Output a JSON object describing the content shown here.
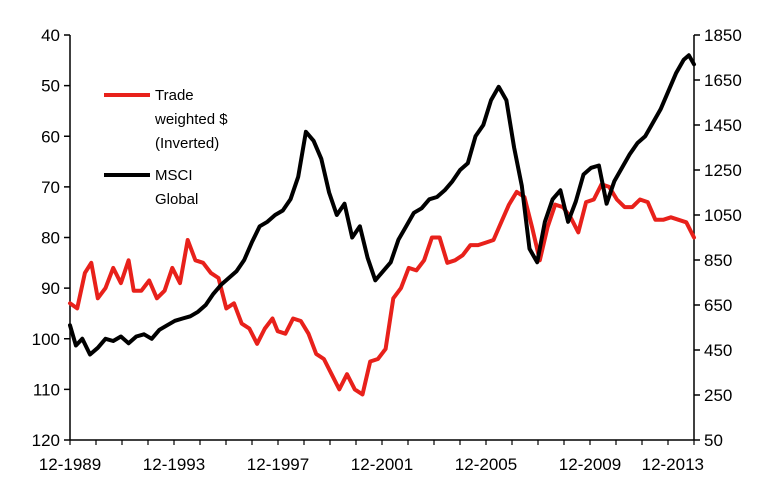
{
  "chart_data": {
    "type": "line",
    "title": "",
    "xlabel": "",
    "ylabel_left": "",
    "ylabel_right": "",
    "x_tick_labels": [
      "12-1989",
      "12-1993",
      "12-1997",
      "12-2001",
      "12-2005",
      "12-2009",
      "12-2013"
    ],
    "x_range": [
      1989.92,
      2014.2
    ],
    "y_left": {
      "range": [
        40,
        120
      ],
      "inverted": true,
      "ticks": [
        40,
        50,
        60,
        70,
        80,
        90,
        100,
        110,
        120
      ]
    },
    "y_right": {
      "range": [
        50,
        1850
      ],
      "ticks": [
        50,
        250,
        450,
        650,
        850,
        1050,
        1250,
        1450,
        1650,
        1850
      ]
    },
    "grid": false,
    "legend_position": "top-left",
    "legend": [
      {
        "lines": [
          "Trade",
          "weighted $",
          "(Inverted)"
        ],
        "color": "#e8211b"
      },
      {
        "lines": [
          "MSCI",
          "Global"
        ],
        "color": "#000000"
      }
    ],
    "series": [
      {
        "name": "Trade weighted $ (Inverted)",
        "axis": "left",
        "color": "#e8211b",
        "x": [
          1989.92,
          1990.2,
          1990.5,
          1990.75,
          1991.0,
          1991.3,
          1991.6,
          1991.9,
          1992.2,
          1992.4,
          1992.7,
          1993.0,
          1993.3,
          1993.6,
          1993.9,
          1994.2,
          1994.5,
          1994.8,
          1995.1,
          1995.4,
          1995.7,
          1996.0,
          1996.3,
          1996.6,
          1996.9,
          1997.2,
          1997.5,
          1997.8,
          1998.0,
          1998.3,
          1998.6,
          1998.9,
          1999.2,
          1999.5,
          1999.8,
          2000.1,
          2000.4,
          2000.7,
          2001.0,
          2001.3,
          2001.6,
          2001.9,
          2002.2,
          2002.5,
          2002.8,
          2003.1,
          2003.4,
          2003.7,
          2004.0,
          2004.3,
          2004.6,
          2004.9,
          2005.2,
          2005.5,
          2005.8,
          2006.1,
          2006.4,
          2006.7,
          2007.0,
          2007.3,
          2007.6,
          2007.9,
          2008.2,
          2008.5,
          2008.8,
          2009.1,
          2009.4,
          2009.7,
          2010.0,
          2010.3,
          2010.6,
          2010.9,
          2011.2,
          2011.5,
          2011.8,
          2012.1,
          2012.4,
          2012.7,
          2013.0,
          2013.3,
          2013.6,
          2013.9,
          2014.2
        ],
        "values": [
          93,
          94,
          87,
          85,
          92,
          90,
          86,
          89,
          84.5,
          90.5,
          90.5,
          88.5,
          92,
          90.5,
          86,
          89,
          80.5,
          84.5,
          85,
          87,
          88,
          94,
          93,
          97,
          98,
          101,
          98,
          96,
          98.5,
          99,
          96,
          96.5,
          99,
          103,
          104,
          107,
          110,
          107,
          110,
          111,
          104.5,
          104,
          102,
          92,
          90,
          86,
          86.5,
          84.5,
          80,
          80,
          85,
          84.5,
          83.5,
          81.5,
          81.5,
          81,
          80.5,
          77,
          73.5,
          71,
          72,
          78,
          84.5,
          78,
          73.5,
          74,
          76,
          79,
          73,
          72.5,
          69.5,
          70,
          72.5,
          74,
          74,
          72.5,
          73,
          76.5,
          76.5,
          76,
          76.5,
          77,
          80
        ]
      },
      {
        "name": "MSCI Global",
        "axis": "right",
        "color": "#000000",
        "x": [
          1989.92,
          1990.15,
          1990.4,
          1990.7,
          1991.0,
          1991.3,
          1991.6,
          1991.9,
          1992.2,
          1992.5,
          1992.8,
          1993.1,
          1993.4,
          1993.7,
          1994.0,
          1994.3,
          1994.6,
          1994.9,
          1995.2,
          1995.5,
          1995.8,
          1996.1,
          1996.4,
          1996.7,
          1997.0,
          1997.3,
          1997.6,
          1997.9,
          1998.2,
          1998.5,
          1998.8,
          1999.1,
          1999.4,
          1999.7,
          2000.0,
          2000.3,
          2000.6,
          2000.9,
          2001.2,
          2001.5,
          2001.8,
          2002.1,
          2002.4,
          2002.7,
          2003.0,
          2003.3,
          2003.6,
          2003.9,
          2004.2,
          2004.5,
          2004.8,
          2005.1,
          2005.4,
          2005.7,
          2006.0,
          2006.3,
          2006.6,
          2006.9,
          2007.2,
          2007.5,
          2007.8,
          2008.1,
          2008.4,
          2008.7,
          2009.0,
          2009.3,
          2009.6,
          2009.9,
          2010.2,
          2010.5,
          2010.8,
          2011.1,
          2011.4,
          2011.7,
          2012.0,
          2012.3,
          2012.6,
          2012.9,
          2013.2,
          2013.5,
          2013.8,
          2014.0,
          2014.2
        ],
        "values": [
          560,
          470,
          500,
          430,
          460,
          500,
          490,
          510,
          480,
          510,
          520,
          500,
          540,
          560,
          580,
          590,
          600,
          620,
          650,
          700,
          740,
          770,
          800,
          850,
          930,
          1000,
          1020,
          1050,
          1070,
          1120,
          1220,
          1420,
          1380,
          1300,
          1150,
          1050,
          1100,
          950,
          1000,
          860,
          760,
          800,
          840,
          940,
          1000,
          1060,
          1080,
          1120,
          1130,
          1160,
          1200,
          1250,
          1280,
          1400,
          1450,
          1560,
          1620,
          1560,
          1350,
          1180,
          900,
          840,
          1020,
          1120,
          1160,
          1020,
          1110,
          1230,
          1260,
          1270,
          1100,
          1200,
          1260,
          1320,
          1370,
          1400,
          1460,
          1520,
          1600,
          1680,
          1740,
          1760,
          1720
        ]
      }
    ]
  }
}
